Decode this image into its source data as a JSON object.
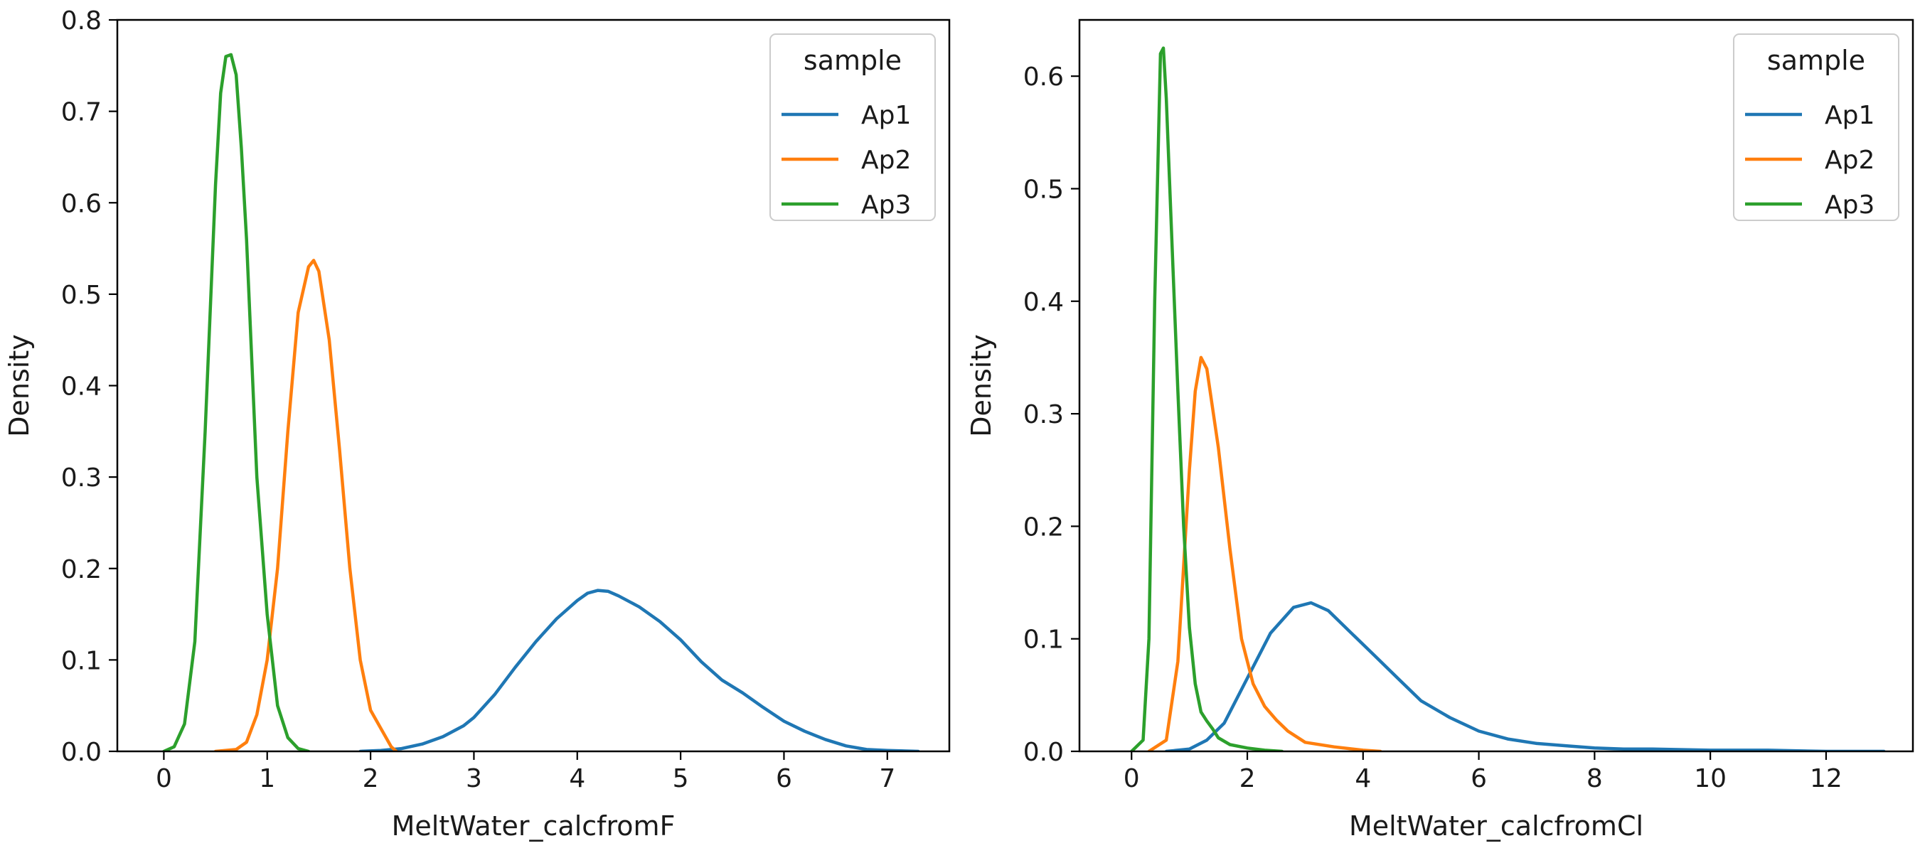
{
  "chart_data": [
    {
      "type": "line",
      "xlabel": "MeltWater_calcfromF",
      "ylabel": "Density",
      "xlim": [
        -0.45,
        7.6
      ],
      "ylim": [
        0,
        0.8
      ],
      "xticks": [
        0,
        1,
        2,
        3,
        4,
        5,
        6,
        7
      ],
      "xtick_labels": [
        "0",
        "1",
        "2",
        "3",
        "4",
        "5",
        "6",
        "7"
      ],
      "yticks": [
        0.0,
        0.1,
        0.2,
        0.3,
        0.4,
        0.5,
        0.6,
        0.7,
        0.8
      ],
      "ytick_labels": [
        "0.0",
        "0.1",
        "0.2",
        "0.3",
        "0.4",
        "0.5",
        "0.6",
        "0.7",
        "0.8"
      ],
      "grid": false,
      "legend": {
        "title": "sample",
        "placement": "top-right"
      },
      "series": [
        {
          "name": "Ap1",
          "color": "#1f77b4",
          "x": [
            1.9,
            2.1,
            2.3,
            2.5,
            2.7,
            2.9,
            3.0,
            3.2,
            3.4,
            3.6,
            3.8,
            4.0,
            4.1,
            4.2,
            4.3,
            4.4,
            4.6,
            4.8,
            5.0,
            5.2,
            5.4,
            5.6,
            5.8,
            6.0,
            6.2,
            6.4,
            6.6,
            6.8,
            7.0,
            7.3
          ],
          "y": [
            0.0,
            0.001,
            0.003,
            0.008,
            0.016,
            0.028,
            0.037,
            0.062,
            0.092,
            0.12,
            0.145,
            0.165,
            0.173,
            0.176,
            0.175,
            0.17,
            0.158,
            0.142,
            0.122,
            0.098,
            0.078,
            0.064,
            0.048,
            0.033,
            0.022,
            0.013,
            0.006,
            0.002,
            0.001,
            0.0
          ]
        },
        {
          "name": "Ap2",
          "color": "#ff7f0e",
          "x": [
            0.5,
            0.7,
            0.8,
            0.9,
            1.0,
            1.1,
            1.2,
            1.3,
            1.4,
            1.45,
            1.5,
            1.6,
            1.7,
            1.8,
            1.9,
            2.0,
            2.1,
            2.2,
            2.25
          ],
          "y": [
            0.0,
            0.002,
            0.01,
            0.04,
            0.1,
            0.2,
            0.35,
            0.48,
            0.53,
            0.537,
            0.525,
            0.45,
            0.33,
            0.2,
            0.1,
            0.045,
            0.025,
            0.005,
            0.0
          ]
        },
        {
          "name": "Ap3",
          "color": "#2ca02c",
          "x": [
            0.0,
            0.1,
            0.2,
            0.3,
            0.4,
            0.5,
            0.55,
            0.6,
            0.65,
            0.7,
            0.75,
            0.8,
            0.9,
            1.0,
            1.1,
            1.2,
            1.3,
            1.4
          ],
          "y": [
            0.0,
            0.005,
            0.03,
            0.12,
            0.35,
            0.62,
            0.72,
            0.76,
            0.762,
            0.74,
            0.66,
            0.56,
            0.3,
            0.15,
            0.05,
            0.015,
            0.003,
            0.0
          ]
        }
      ]
    },
    {
      "type": "line",
      "xlabel": "MeltWater_calcfromCl",
      "ylabel": "Density",
      "xlim": [
        -0.9,
        13.5
      ],
      "ylim": [
        0,
        0.65
      ],
      "xticks": [
        0,
        2,
        4,
        6,
        8,
        10,
        12
      ],
      "xtick_labels": [
        "0",
        "2",
        "4",
        "6",
        "8",
        "10",
        "12"
      ],
      "yticks": [
        0.0,
        0.1,
        0.2,
        0.3,
        0.4,
        0.5,
        0.6
      ],
      "ytick_labels": [
        "0.0",
        "0.1",
        "0.2",
        "0.3",
        "0.4",
        "0.5",
        "0.6"
      ],
      "grid": false,
      "legend": {
        "title": "sample",
        "placement": "top-right"
      },
      "series": [
        {
          "name": "Ap1",
          "color": "#1f77b4",
          "x": [
            0.6,
            1.0,
            1.3,
            1.6,
            2.0,
            2.4,
            2.8,
            3.1,
            3.4,
            3.8,
            4.2,
            4.6,
            5.0,
            5.5,
            6.0,
            6.5,
            7.0,
            7.5,
            8.0,
            8.5,
            9.0,
            10.0,
            11.0,
            12.0,
            13.0
          ],
          "y": [
            0.0,
            0.002,
            0.01,
            0.025,
            0.065,
            0.105,
            0.128,
            0.132,
            0.125,
            0.105,
            0.085,
            0.065,
            0.045,
            0.03,
            0.018,
            0.011,
            0.007,
            0.005,
            0.003,
            0.002,
            0.002,
            0.001,
            0.001,
            0.0,
            0.0
          ]
        },
        {
          "name": "Ap2",
          "color": "#ff7f0e",
          "x": [
            0.3,
            0.6,
            0.8,
            1.0,
            1.1,
            1.2,
            1.3,
            1.5,
            1.7,
            1.9,
            2.1,
            2.3,
            2.5,
            2.7,
            3.0,
            3.5,
            4.0,
            4.3
          ],
          "y": [
            0.0,
            0.01,
            0.08,
            0.25,
            0.32,
            0.35,
            0.34,
            0.27,
            0.18,
            0.1,
            0.06,
            0.04,
            0.028,
            0.018,
            0.008,
            0.004,
            0.001,
            0.0
          ]
        },
        {
          "name": "Ap3",
          "color": "#2ca02c",
          "x": [
            0.0,
            0.2,
            0.3,
            0.4,
            0.5,
            0.55,
            0.6,
            0.7,
            0.8,
            0.9,
            1.0,
            1.1,
            1.2,
            1.3,
            1.4,
            1.5,
            1.7,
            2.0,
            2.3,
            2.6
          ],
          "y": [
            0.0,
            0.01,
            0.1,
            0.4,
            0.62,
            0.625,
            0.58,
            0.45,
            0.32,
            0.2,
            0.11,
            0.06,
            0.035,
            0.027,
            0.02,
            0.012,
            0.006,
            0.003,
            0.001,
            0.0
          ]
        }
      ]
    }
  ]
}
